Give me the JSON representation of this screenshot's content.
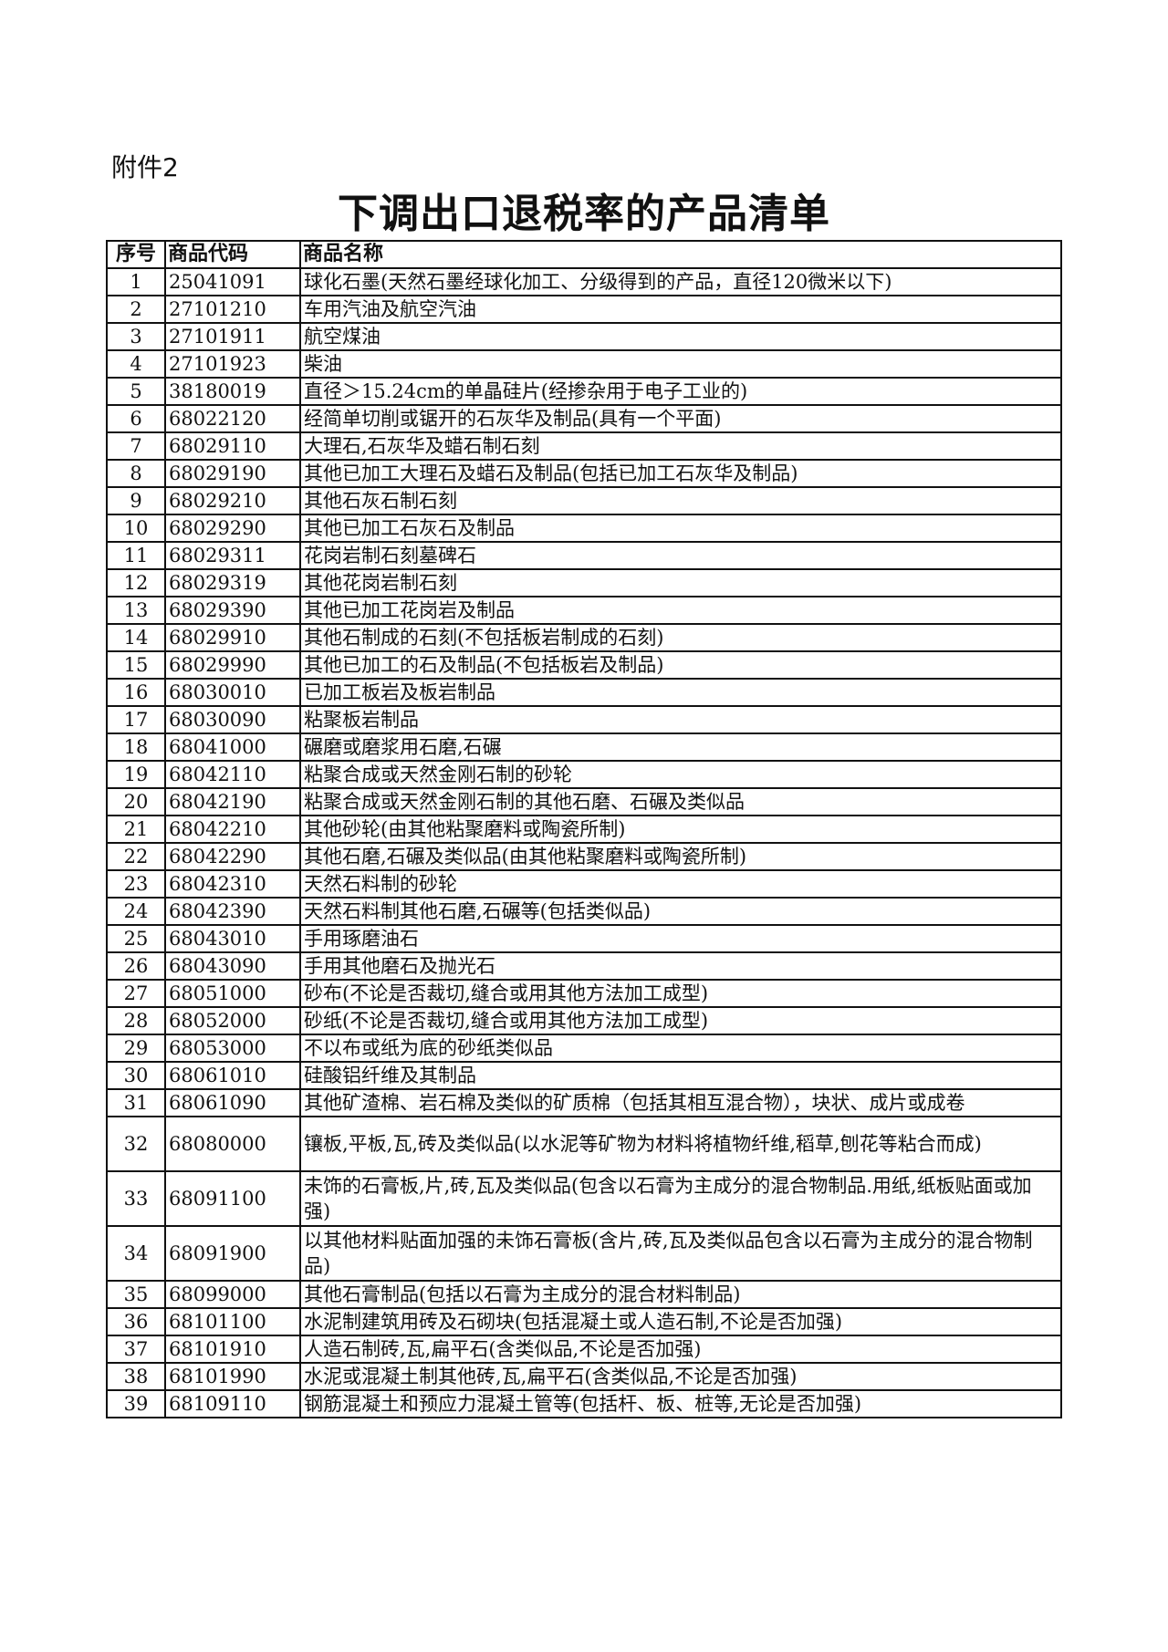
{
  "header": {
    "attachment": "附件2",
    "title": "下调出口退税率的产品清单"
  },
  "table": {
    "columns": [
      "序号",
      "商品代码",
      "商品名称"
    ],
    "rows": [
      [
        "1",
        "25041091",
        "球化石墨(天然石墨经球化加工、分级得到的产品，直径120微米以下)"
      ],
      [
        "2",
        "27101210",
        "车用汽油及航空汽油"
      ],
      [
        "3",
        "27101911",
        "航空煤油"
      ],
      [
        "4",
        "27101923",
        "柴油"
      ],
      [
        "5",
        "38180019",
        "直径＞15.24cm的单晶硅片(经掺杂用于电子工业的)"
      ],
      [
        "6",
        "68022120",
        "经简单切削或锯开的石灰华及制品(具有一个平面)"
      ],
      [
        "7",
        "68029110",
        "大理石,石灰华及蜡石制石刻"
      ],
      [
        "8",
        "68029190",
        "其他已加工大理石及蜡石及制品(包括已加工石灰华及制品)"
      ],
      [
        "9",
        "68029210",
        "其他石灰石制石刻"
      ],
      [
        "10",
        "68029290",
        "其他已加工石灰石及制品"
      ],
      [
        "11",
        "68029311",
        "花岗岩制石刻墓碑石"
      ],
      [
        "12",
        "68029319",
        "其他花岗岩制石刻"
      ],
      [
        "13",
        "68029390",
        "其他已加工花岗岩及制品"
      ],
      [
        "14",
        "68029910",
        "其他石制成的石刻(不包括板岩制成的石刻)"
      ],
      [
        "15",
        "68029990",
        "其他已加工的石及制品(不包括板岩及制品)"
      ],
      [
        "16",
        "68030010",
        "已加工板岩及板岩制品"
      ],
      [
        "17",
        "68030090",
        "粘聚板岩制品"
      ],
      [
        "18",
        "68041000",
        "碾磨或磨浆用石磨,石碾"
      ],
      [
        "19",
        "68042110",
        "粘聚合成或天然金刚石制的砂轮"
      ],
      [
        "20",
        "68042190",
        "粘聚合成或天然金刚石制的其他石磨、石碾及类似品"
      ],
      [
        "21",
        "68042210",
        "其他砂轮(由其他粘聚磨料或陶瓷所制)"
      ],
      [
        "22",
        "68042290",
        "其他石磨,石碾及类似品(由其他粘聚磨料或陶瓷所制)"
      ],
      [
        "23",
        "68042310",
        "天然石料制的砂轮"
      ],
      [
        "24",
        "68042390",
        "天然石料制其他石磨,石碾等(包括类似品)"
      ],
      [
        "25",
        "68043010",
        "手用琢磨油石"
      ],
      [
        "26",
        "68043090",
        "手用其他磨石及抛光石"
      ],
      [
        "27",
        "68051000",
        "砂布(不论是否裁切,缝合或用其他方法加工成型)"
      ],
      [
        "28",
        "68052000",
        "砂纸(不论是否裁切,缝合或用其他方法加工成型)"
      ],
      [
        "29",
        "68053000",
        "不以布或纸为底的砂纸类似品"
      ],
      [
        "30",
        "68061010",
        "硅酸铝纤维及其制品"
      ],
      [
        "31",
        "68061090",
        "其他矿渣棉、岩石棉及类似的矿质棉（包括其相互混合物），块状、成片或成卷"
      ],
      [
        "32",
        "68080000",
        "镶板,平板,瓦,砖及类似品(以水泥等矿物为材料将植物纤维,稻草,刨花等粘合而成)"
      ],
      [
        "33",
        "68091100",
        "未饰的石膏板,片,砖,瓦及类似品(包含以石膏为主成分的混合物制品.用纸,纸板贴面或加强)"
      ],
      [
        "34",
        "68091900",
        "以其他材料贴面加强的未饰石膏板(含片,砖,瓦及类似品包含以石膏为主成分的混合物制品)"
      ],
      [
        "35",
        "68099000",
        "其他石膏制品(包括以石膏为主成分的混合材料制品)"
      ],
      [
        "36",
        "68101100",
        "水泥制建筑用砖及石砌块(包括混凝土或人造石制,不论是否加强)"
      ],
      [
        "37",
        "68101910",
        "人造石制砖,瓦,扁平石(含类似品,不论是否加强)"
      ],
      [
        "38",
        "68101990",
        "水泥或混凝土制其他砖,瓦,扁平石(含类似品,不论是否加强)"
      ],
      [
        "39",
        "68109110",
        "钢筋混凝土和预应力混凝土管等(包括杆、板、桩等,无论是否加强)"
      ]
    ]
  }
}
